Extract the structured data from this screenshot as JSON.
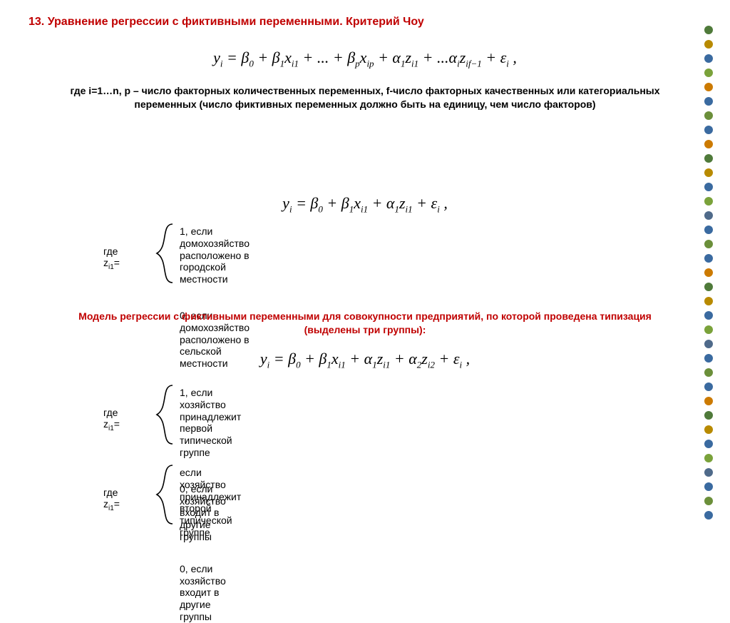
{
  "title": "13. Уравнение регрессии с фиктивными переменными. Критерий Чоу",
  "equations": {
    "eq1": "y<span class='sub'>i</span> = β<span class='sub'>0</span> + β<span class='sub'>1</span>x<span class='sub'>i1</span> + ... + β<span class='sub'>p</span>x<span class='sub'>ip</span> + α<span class='sub'>1</span>z<span class='sub'>i1</span> + ...α<span class='sub'>i</span>z<span class='sub'>if−1</span> + ε<span class='sub'>i</span> ,",
    "eq2": "y<span class='sub'>i</span> = β<span class='sub'>0</span> + β<span class='sub'>1</span>x<span class='sub'>i1</span> + α<span class='sub'>1</span>z<span class='sub'>i1</span> + ε<span class='sub'>i</span> ,",
    "eq3": "y<span class='sub'>i</span> = β<span class='sub'>0</span> + β<span class='sub'>1</span>x<span class='sub'>i1</span> + α<span class='sub'>1</span>z<span class='sub'>i1</span> + α<span class='sub'>2</span>z<span class='sub'>i2</span> + ε<span class='sub'>i</span> ,"
  },
  "paragraphs": {
    "p1": "где i=1…n, p – число факторных количественных переменных, f-число факторных качественных или категориальных переменных (число фиктивных переменных должно быть на единицу, чем число факторов)",
    "p_red": "Модель регрессии с фиктивными переменными для совокупности предприятий, по которой проведена типизация (выделены три группы):"
  },
  "cases": {
    "c1": {
      "where": "где z<span class='sub2'>i1</span>=",
      "line1": "1, если домохозяйство расположено в городской местности",
      "line2": "0, если домохозяйство расположено в сельской местности"
    },
    "c2": {
      "where": "где z<span class='sub2'>i1</span>=",
      "line1": "1, если хозяйство принадлежит первой типической группе",
      "line2": "0, если хозяйство входит в другие группы"
    },
    "c3": {
      "where": "где z<span class='sub2'>i1</span>=",
      "line1": "если хозяйство принадлежит второй типической группе",
      "line2": "0, если хозяйство входит в другие группы"
    }
  },
  "decor": {
    "dot_colors": [
      "#4f7a3a",
      "#b88a00",
      "#3a6aa0",
      "#7aa23a",
      "#cc7a00",
      "#3a6aa0",
      "#6b8f3a",
      "#3a6aa0",
      "#cc7a00",
      "#4f7a3a",
      "#b88a00",
      "#3a6aa0",
      "#7aa23a",
      "#4f6a8a",
      "#3a6aa0",
      "#6b8f3a",
      "#3a6aa0",
      "#cc7a00",
      "#4f7a3a",
      "#b88a00",
      "#3a6aa0",
      "#7aa23a",
      "#4f6a8a",
      "#3a6aa0",
      "#6b8f3a",
      "#3a6aa0",
      "#cc7a00",
      "#4f7a3a",
      "#b88a00",
      "#3a6aa0",
      "#7aa23a",
      "#4f6a8a",
      "#3a6aa0",
      "#6b8f3a",
      "#3a6aa0"
    ]
  },
  "colors": {
    "title_color": "#c00000",
    "red_text": "#c00000",
    "body_text": "#000000",
    "background": "#ffffff"
  },
  "typography": {
    "title_fontsize": 16,
    "title_weight": "bold",
    "body_fontsize": 14,
    "equation_fontsize": 22,
    "equation_family": "Times New Roman",
    "body_family": "Arial"
  }
}
